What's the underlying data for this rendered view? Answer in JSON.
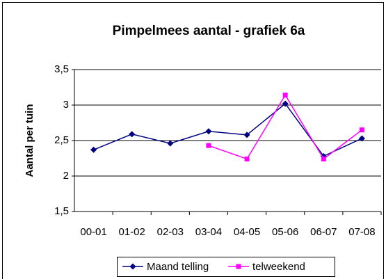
{
  "chart_data": {
    "type": "line",
    "title": "Pimpelmees aantal - grafiek 6a",
    "ylabel": "Aantal per tuin",
    "categories": [
      "00-01",
      "01-02",
      "02-03",
      "03-04",
      "04-05",
      "05-06",
      "06-07",
      "07-08"
    ],
    "series": [
      {
        "name": "Maand telling",
        "color": "#000080",
        "marker": "diamond",
        "values": [
          2.37,
          2.59,
          2.46,
          2.63,
          2.58,
          3.02,
          2.28,
          2.53
        ]
      },
      {
        "name": "telweekend",
        "color": "#ff00ff",
        "marker": "square",
        "values": [
          null,
          null,
          null,
          2.43,
          2.24,
          3.14,
          2.24,
          2.65
        ]
      }
    ],
    "ylim": [
      1.5,
      3.5
    ],
    "yticks": [
      {
        "value": 1.5,
        "label": "1,5"
      },
      2,
      {
        "value": 2.5,
        "label": "2,5"
      },
      3,
      {
        "value": 3.5,
        "label": "3,5"
      }
    ],
    "grid": true,
    "legend": "bottom"
  }
}
